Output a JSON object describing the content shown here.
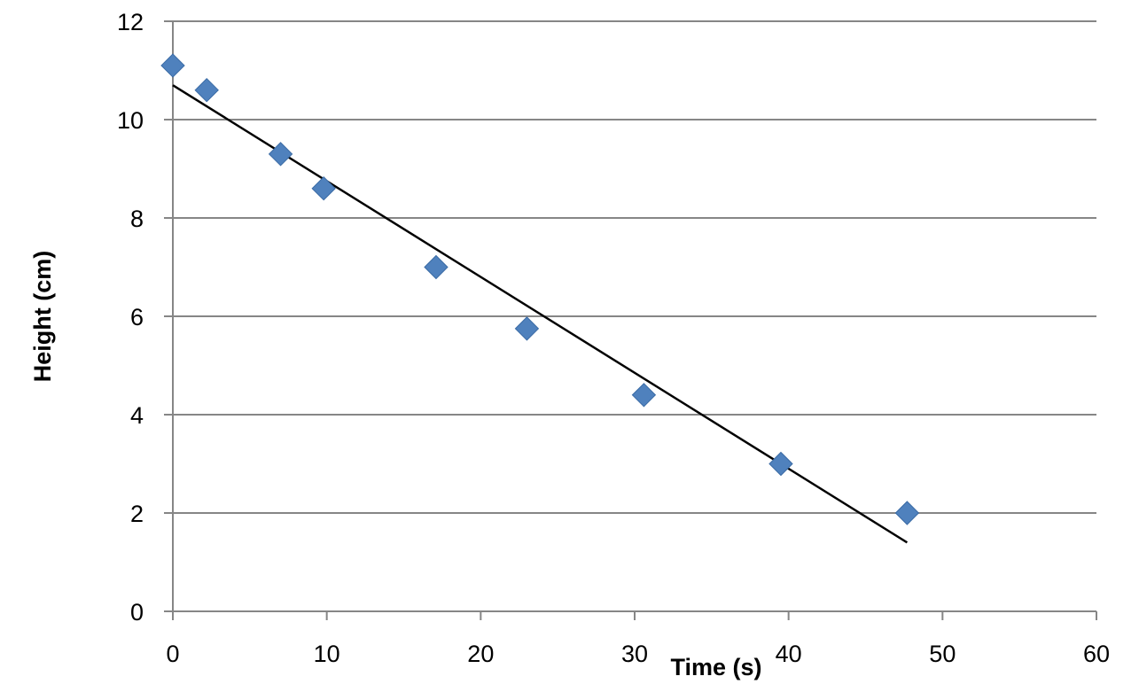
{
  "chart_data": {
    "type": "scatter",
    "title": "",
    "xlabel": "Time (s)",
    "ylabel": "Height (cm)",
    "xlim": [
      0,
      60
    ],
    "ylim": [
      0,
      12
    ],
    "x_ticks": [
      0,
      10,
      20,
      30,
      40,
      50,
      60
    ],
    "y_ticks": [
      0,
      2,
      4,
      6,
      8,
      10,
      12
    ],
    "grid": "horizontal",
    "legend": "none",
    "series": [
      {
        "marker": "diamond",
        "color": "#4F81BD",
        "points": [
          {
            "x": 0,
            "y": 11.1
          },
          {
            "x": 2.2,
            "y": 10.6
          },
          {
            "x": 7.0,
            "y": 9.3
          },
          {
            "x": 9.8,
            "y": 8.6
          },
          {
            "x": 17.1,
            "y": 7.0
          },
          {
            "x": 23.0,
            "y": 5.75
          },
          {
            "x": 30.6,
            "y": 4.4
          },
          {
            "x": 39.5,
            "y": 3.0
          },
          {
            "x": 47.7,
            "y": 2.0
          }
        ]
      }
    ],
    "trendline": {
      "type": "linear",
      "color": "#000000",
      "start": {
        "x": 0,
        "y": 10.7
      },
      "end": {
        "x": 47.7,
        "y": 1.4
      }
    }
  }
}
